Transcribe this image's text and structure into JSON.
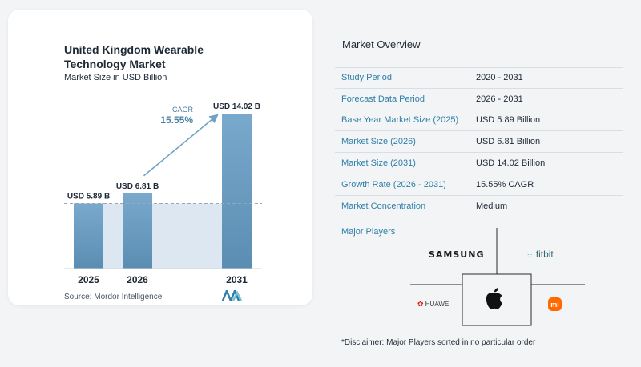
{
  "left_panel": {
    "title": "United Kingdom Wearable Technology Market",
    "subtitle": "Market Size in USD Billion",
    "source": "Source:  Mordor Intelligence"
  },
  "chart_data": {
    "type": "bar",
    "title": "United Kingdom Wearable Technology Market",
    "subtitle": "Market Size in USD Billion",
    "categories": [
      "2025",
      "2026",
      "2031"
    ],
    "values": [
      5.89,
      6.81,
      14.02
    ],
    "value_labels": [
      "USD 5.89 B",
      "USD 6.81 B",
      "USD 14.02 B"
    ],
    "cagr_label": "CAGR",
    "cagr_value": "15.55%",
    "ylim": [
      0,
      14.02
    ],
    "colors": {
      "bar_top": "#79a9cd",
      "bar_bottom": "#5b8db2",
      "shade": "#dce7f1",
      "arrow": "#6fa2c3",
      "dashed": "#9aa7b4"
    }
  },
  "overview": {
    "title": "Market Overview",
    "rows": [
      {
        "label": "Study Period",
        "value": "2020 - 2031"
      },
      {
        "label": "Forecast Data Period",
        "value": "2026 - 2031"
      },
      {
        "label": "Base Year Market Size (2025)",
        "value": "USD 5.89 Billion"
      },
      {
        "label": "Market Size (2026)",
        "value": "USD 6.81 Billion"
      },
      {
        "label": "Market Size (2031)",
        "value": "USD 14.02 Billion"
      },
      {
        "label": "Growth Rate (2026 - 2031)",
        "value": "15.55% CAGR"
      },
      {
        "label": "Market Concentration",
        "value": "Medium"
      }
    ]
  },
  "players": {
    "title": "Major Players",
    "samsung": "SAMSUNG",
    "fitbit": "fitbit",
    "huawei": "HUAWEI",
    "xiaomi": "mi"
  },
  "disclaimer": "*Disclaimer: Major Players sorted in no particular order",
  "accent": "#2f7fa8"
}
